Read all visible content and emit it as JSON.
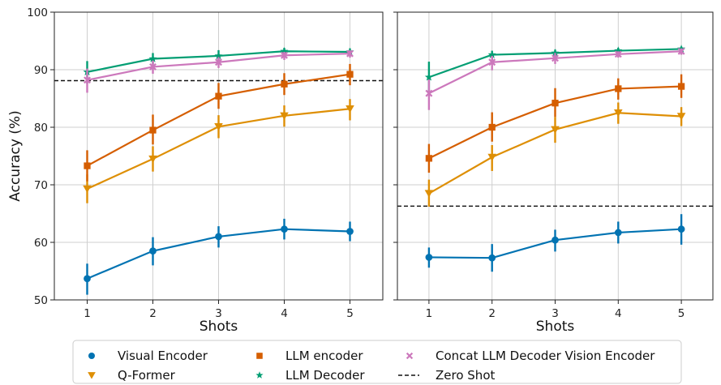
{
  "chart_data": [
    {
      "type": "line",
      "panel": "left",
      "xlabel": "Shots",
      "ylabel": "Accuracy (%)",
      "xlim": [
        0.5,
        5.5
      ],
      "ylim": [
        50,
        100
      ],
      "x_ticks": [
        1,
        2,
        3,
        4,
        5
      ],
      "y_ticks": [
        50,
        60,
        70,
        80,
        90,
        100
      ],
      "grid": true,
      "x": [
        1,
        2,
        3,
        4,
        5
      ],
      "zero_shot": 88.1,
      "series": [
        {
          "name": "Visual Encoder",
          "color": "#0173b2",
          "marker": "circle",
          "values": [
            53.7,
            58.5,
            61.0,
            62.3,
            61.9
          ],
          "err_low": [
            50.9,
            56.0,
            59.1,
            60.5,
            60.2
          ],
          "err_high": [
            56.3,
            60.9,
            62.8,
            64.1,
            63.6
          ]
        },
        {
          "name": "Q-Former",
          "color": "#de8f05",
          "marker": "triangle-down",
          "values": [
            69.3,
            74.5,
            80.1,
            82.0,
            83.2
          ],
          "err_low": [
            66.8,
            72.3,
            78.1,
            80.1,
            81.2
          ],
          "err_high": [
            71.8,
            76.7,
            82.1,
            83.8,
            84.9
          ]
        },
        {
          "name": "LLM encoder",
          "color": "#d55e00",
          "marker": "square",
          "values": [
            73.3,
            79.5,
            85.4,
            87.5,
            89.2
          ],
          "err_low": [
            70.6,
            77.0,
            83.2,
            85.6,
            87.3
          ],
          "err_high": [
            76.0,
            82.2,
            87.7,
            89.4,
            91.0
          ]
        },
        {
          "name": "LLM Decoder",
          "color": "#029e73",
          "marker": "star",
          "values": [
            89.6,
            91.9,
            92.4,
            93.2,
            93.1
          ],
          "err_low": [
            87.6,
            90.9,
            91.4,
            92.5,
            92.4
          ],
          "err_high": [
            91.5,
            92.9,
            93.4,
            93.8,
            93.7
          ]
        },
        {
          "name": "Concat LLM Decoder Vision Encoder",
          "color": "#cc78bc",
          "marker": "x",
          "values": [
            88.2,
            90.5,
            91.3,
            92.5,
            92.8
          ],
          "err_low": [
            86.0,
            89.3,
            90.3,
            91.7,
            92.1
          ],
          "err_high": [
            90.2,
            91.6,
            92.2,
            93.1,
            93.4
          ]
        }
      ]
    },
    {
      "type": "line",
      "panel": "right",
      "xlabel": "Shots",
      "ylabel": "",
      "xlim": [
        0.5,
        5.5
      ],
      "ylim": [
        50,
        100
      ],
      "x_ticks": [
        1,
        2,
        3,
        4,
        5
      ],
      "y_ticks": [
        50,
        60,
        70,
        80,
        90,
        100
      ],
      "grid": true,
      "x": [
        1,
        2,
        3,
        4,
        5
      ],
      "zero_shot": 66.3,
      "series": [
        {
          "name": "Visual Encoder",
          "color": "#0173b2",
          "marker": "circle",
          "values": [
            57.4,
            57.3,
            60.4,
            61.7,
            62.3
          ],
          "err_low": [
            55.6,
            54.9,
            58.4,
            59.8,
            59.6
          ],
          "err_high": [
            59.1,
            59.7,
            62.2,
            63.6,
            64.9
          ]
        },
        {
          "name": "Q-Former",
          "color": "#de8f05",
          "marker": "triangle-down",
          "values": [
            68.5,
            74.8,
            79.6,
            82.5,
            81.9
          ],
          "err_low": [
            66.2,
            72.4,
            77.3,
            80.6,
            80.2
          ],
          "err_high": [
            70.9,
            76.9,
            81.8,
            84.3,
            83.5
          ]
        },
        {
          "name": "LLM encoder",
          "color": "#d55e00",
          "marker": "square",
          "values": [
            74.6,
            80.0,
            84.2,
            86.7,
            87.1
          ],
          "err_low": [
            72.1,
            77.5,
            81.8,
            84.8,
            85.1
          ],
          "err_high": [
            77.1,
            82.6,
            86.8,
            88.5,
            89.2
          ]
        },
        {
          "name": "LLM Decoder",
          "color": "#029e73",
          "marker": "star",
          "values": [
            88.7,
            92.6,
            92.9,
            93.3,
            93.6
          ],
          "err_low": [
            86.1,
            91.7,
            92.2,
            92.7,
            93.1
          ],
          "err_high": [
            91.4,
            93.3,
            93.5,
            93.8,
            94.0
          ]
        },
        {
          "name": "Concat LLM Decoder Vision Encoder",
          "color": "#cc78bc",
          "marker": "x",
          "values": [
            85.9,
            91.3,
            92.0,
            92.7,
            93.2
          ],
          "err_low": [
            83.0,
            89.9,
            91.0,
            92.1,
            92.6
          ],
          "err_high": [
            88.3,
            92.4,
            92.9,
            93.2,
            93.7
          ]
        }
      ]
    }
  ],
  "legend": {
    "placement": "bottom",
    "items": [
      {
        "label": "Visual Encoder",
        "color": "#0173b2",
        "marker": "circle"
      },
      {
        "label": "LLM encoder",
        "color": "#d55e00",
        "marker": "square"
      },
      {
        "label": "Concat LLM Decoder Vision Encoder",
        "color": "#cc78bc",
        "marker": "x"
      },
      {
        "label": "Q-Former",
        "color": "#de8f05",
        "marker": "triangle-down"
      },
      {
        "label": "LLM Decoder",
        "color": "#029e73",
        "marker": "star"
      },
      {
        "label": "Zero Shot",
        "color": "#111111",
        "marker": "dashed-line"
      }
    ]
  }
}
